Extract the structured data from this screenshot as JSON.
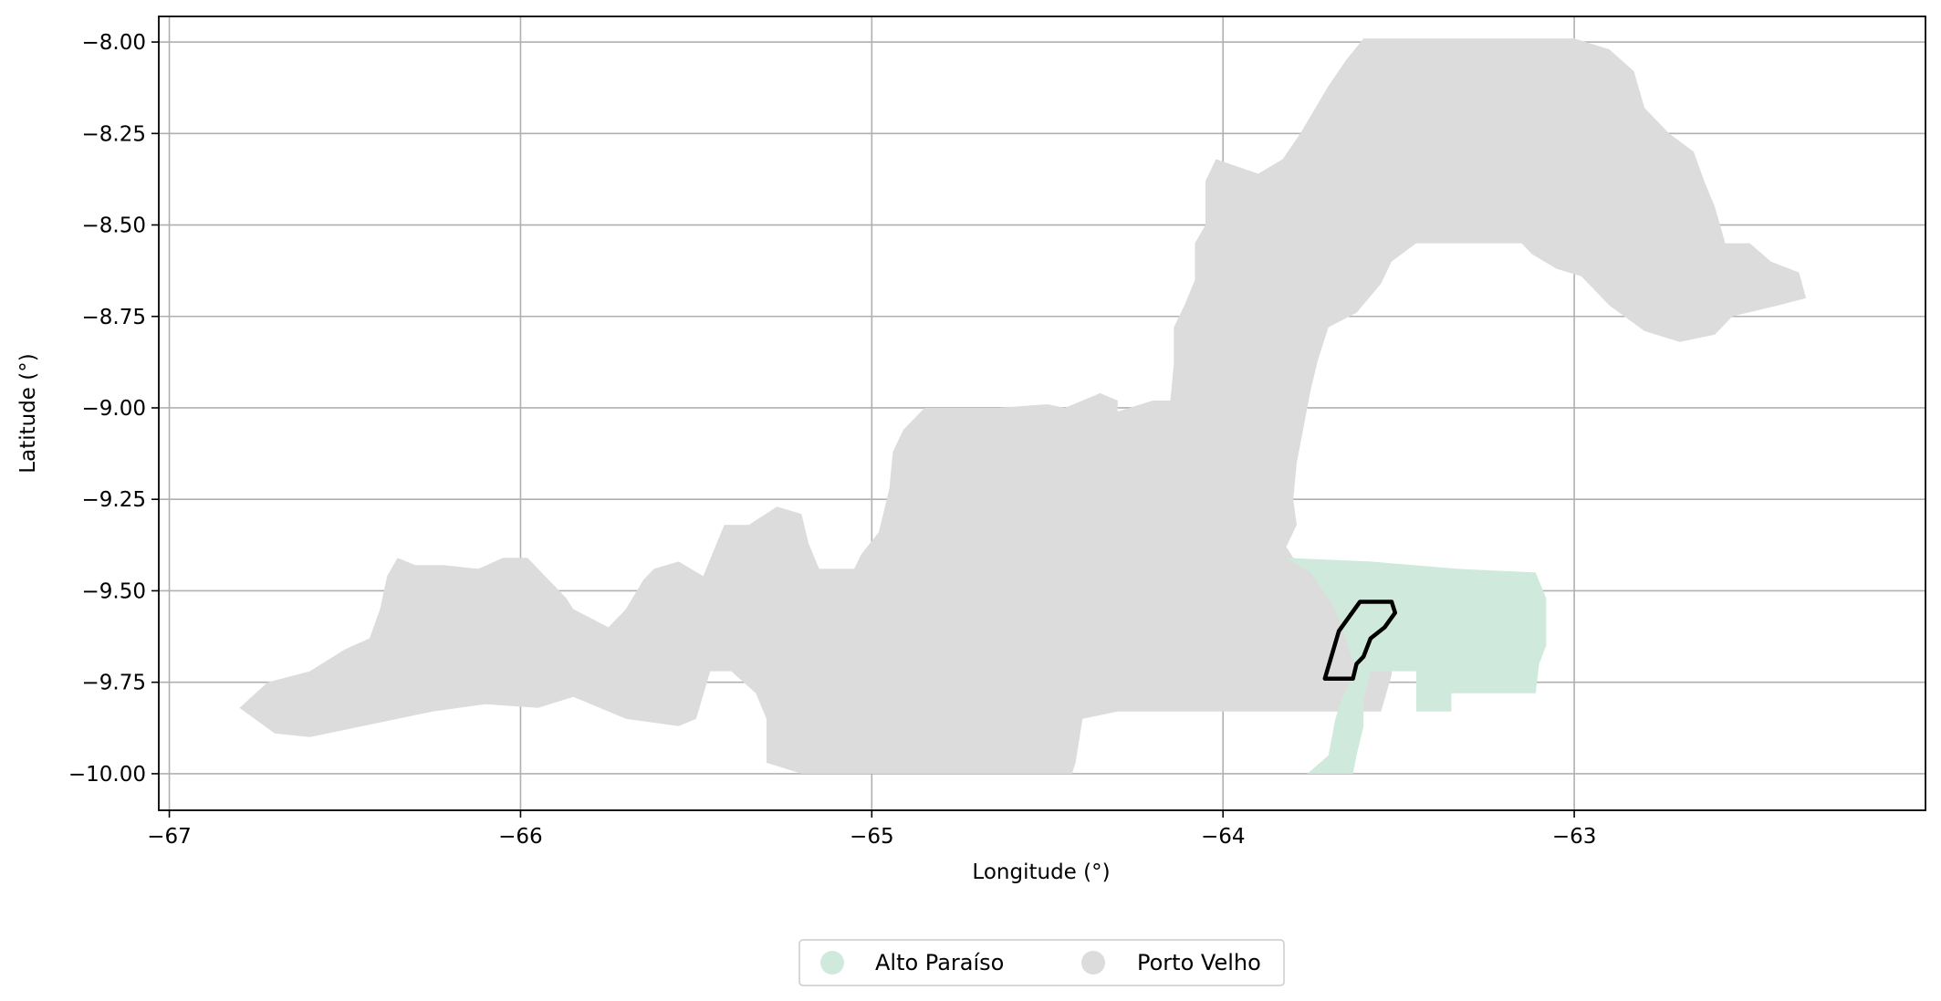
{
  "chart_data": {
    "type": "map",
    "xlabel": "Longitude (°)",
    "ylabel": "Latitude (°)",
    "xlim": [
      -67.03,
      -62.0
    ],
    "ylim": [
      -10.1,
      -7.93
    ],
    "xticks": [
      -67,
      -66,
      -65,
      -64,
      -63
    ],
    "xtick_labels": [
      "−67",
      "−66",
      "−65",
      "−64",
      "−63"
    ],
    "yticks": [
      -8.0,
      -8.25,
      -8.5,
      -8.75,
      -9.0,
      -9.25,
      -9.5,
      -9.75,
      -10.0
    ],
    "ytick_labels": [
      "−8.00",
      "−8.25",
      "−8.50",
      "−8.75",
      "−9.00",
      "−9.25",
      "−9.50",
      "−9.75",
      "−10.00"
    ],
    "grid": true,
    "legend_position": "bottom-center",
    "regions": [
      {
        "name": "Porto Velho",
        "color": "#dcdcdc",
        "polygon": [
          [
            -66.8,
            -9.82
          ],
          [
            -66.72,
            -9.75
          ],
          [
            -66.6,
            -9.72
          ],
          [
            -66.5,
            -9.66
          ],
          [
            -66.43,
            -9.63
          ],
          [
            -66.4,
            -9.55
          ],
          [
            -66.38,
            -9.46
          ],
          [
            -66.35,
            -9.41
          ],
          [
            -66.3,
            -9.43
          ],
          [
            -66.22,
            -9.43
          ],
          [
            -66.12,
            -9.44
          ],
          [
            -66.05,
            -9.41
          ],
          [
            -65.98,
            -9.41
          ],
          [
            -65.92,
            -9.47
          ],
          [
            -65.87,
            -9.52
          ],
          [
            -65.85,
            -9.55
          ],
          [
            -65.75,
            -9.6
          ],
          [
            -65.7,
            -9.55
          ],
          [
            -65.65,
            -9.47
          ],
          [
            -65.62,
            -9.44
          ],
          [
            -65.55,
            -9.42
          ],
          [
            -65.48,
            -9.46
          ],
          [
            -65.45,
            -9.39
          ],
          [
            -65.42,
            -9.32
          ],
          [
            -65.35,
            -9.32
          ],
          [
            -65.27,
            -9.27
          ],
          [
            -65.2,
            -9.29
          ],
          [
            -65.18,
            -9.37
          ],
          [
            -65.15,
            -9.44
          ],
          [
            -65.05,
            -9.44
          ],
          [
            -65.03,
            -9.4
          ],
          [
            -64.98,
            -9.34
          ],
          [
            -64.95,
            -9.22
          ],
          [
            -64.94,
            -9.12
          ],
          [
            -64.91,
            -9.06
          ],
          [
            -64.85,
            -9.0
          ],
          [
            -64.72,
            -9.0
          ],
          [
            -64.64,
            -9.0
          ],
          [
            -64.5,
            -8.99
          ],
          [
            -64.45,
            -9.0
          ],
          [
            -64.35,
            -8.96
          ],
          [
            -64.3,
            -8.98
          ],
          [
            -64.3,
            -9.01
          ],
          [
            -64.2,
            -8.98
          ],
          [
            -64.15,
            -8.98
          ],
          [
            -64.14,
            -8.88
          ],
          [
            -64.14,
            -8.78
          ],
          [
            -64.11,
            -8.72
          ],
          [
            -64.08,
            -8.65
          ],
          [
            -64.08,
            -8.55
          ],
          [
            -64.05,
            -8.5
          ],
          [
            -64.05,
            -8.38
          ],
          [
            -64.02,
            -8.32
          ],
          [
            -63.96,
            -8.34
          ],
          [
            -63.9,
            -8.36
          ],
          [
            -63.83,
            -8.32
          ],
          [
            -63.78,
            -8.25
          ],
          [
            -63.7,
            -8.12
          ],
          [
            -63.65,
            -8.05
          ],
          [
            -63.6,
            -7.99
          ],
          [
            -63.2,
            -7.99
          ],
          [
            -63.0,
            -7.99
          ],
          [
            -62.9,
            -8.02
          ],
          [
            -62.83,
            -8.08
          ],
          [
            -62.8,
            -8.18
          ],
          [
            -62.73,
            -8.25
          ],
          [
            -62.66,
            -8.3
          ],
          [
            -62.63,
            -8.38
          ],
          [
            -62.6,
            -8.45
          ],
          [
            -62.57,
            -8.55
          ],
          [
            -62.5,
            -8.55
          ],
          [
            -62.44,
            -8.6
          ],
          [
            -62.36,
            -8.63
          ],
          [
            -62.34,
            -8.7
          ],
          [
            -62.42,
            -8.72
          ],
          [
            -62.55,
            -8.75
          ],
          [
            -62.6,
            -8.8
          ],
          [
            -62.7,
            -8.82
          ],
          [
            -62.8,
            -8.79
          ],
          [
            -62.9,
            -8.72
          ],
          [
            -62.98,
            -8.64
          ],
          [
            -63.05,
            -8.62
          ],
          [
            -63.12,
            -8.58
          ],
          [
            -63.15,
            -8.55
          ],
          [
            -63.3,
            -8.55
          ],
          [
            -63.45,
            -8.55
          ],
          [
            -63.52,
            -8.6
          ],
          [
            -63.55,
            -8.66
          ],
          [
            -63.62,
            -8.74
          ],
          [
            -63.7,
            -8.78
          ],
          [
            -63.73,
            -8.87
          ],
          [
            -63.75,
            -8.95
          ],
          [
            -63.77,
            -9.05
          ],
          [
            -63.79,
            -9.15
          ],
          [
            -63.8,
            -9.25
          ],
          [
            -63.79,
            -9.32
          ],
          [
            -63.82,
            -9.38
          ],
          [
            -63.8,
            -9.41
          ],
          [
            -63.66,
            -9.44
          ],
          [
            -63.58,
            -9.52
          ],
          [
            -63.56,
            -9.58
          ],
          [
            -63.52,
            -9.65
          ],
          [
            -63.52,
            -9.73
          ],
          [
            -63.55,
            -9.83
          ],
          [
            -63.8,
            -9.83
          ],
          [
            -64.3,
            -9.83
          ],
          [
            -64.4,
            -9.85
          ],
          [
            -64.42,
            -9.97
          ],
          [
            -64.43,
            -10.0
          ],
          [
            -64.9,
            -10.0
          ],
          [
            -65.2,
            -10.0
          ],
          [
            -65.3,
            -9.97
          ],
          [
            -65.3,
            -9.85
          ],
          [
            -65.33,
            -9.78
          ],
          [
            -65.4,
            -9.72
          ],
          [
            -65.46,
            -9.72
          ],
          [
            -65.5,
            -9.85
          ],
          [
            -65.55,
            -9.87
          ],
          [
            -65.7,
            -9.85
          ],
          [
            -65.85,
            -9.79
          ],
          [
            -65.95,
            -9.82
          ],
          [
            -66.1,
            -9.81
          ],
          [
            -66.25,
            -9.83
          ],
          [
            -66.35,
            -9.85
          ],
          [
            -66.45,
            -9.87
          ],
          [
            -66.6,
            -9.9
          ],
          [
            -66.7,
            -9.89
          ]
        ]
      },
      {
        "name": "Alto Paraíso",
        "color": "#cfeadc",
        "polygon": [
          [
            -63.82,
            -9.41
          ],
          [
            -63.58,
            -9.42
          ],
          [
            -63.33,
            -9.44
          ],
          [
            -63.11,
            -9.45
          ],
          [
            -63.08,
            -9.52
          ],
          [
            -63.08,
            -9.65
          ],
          [
            -63.1,
            -9.7
          ],
          [
            -63.11,
            -9.78
          ],
          [
            -63.35,
            -9.78
          ],
          [
            -63.35,
            -9.83
          ],
          [
            -63.45,
            -9.83
          ],
          [
            -63.45,
            -9.72
          ],
          [
            -63.58,
            -9.72
          ],
          [
            -63.6,
            -9.8
          ],
          [
            -63.6,
            -9.87
          ],
          [
            -63.62,
            -9.95
          ],
          [
            -63.63,
            -10.0
          ],
          [
            -63.76,
            -10.0
          ],
          [
            -63.7,
            -9.95
          ],
          [
            -63.68,
            -9.85
          ],
          [
            -63.66,
            -9.79
          ],
          [
            -63.62,
            -9.72
          ],
          [
            -63.68,
            -9.55
          ],
          [
            -63.75,
            -9.45
          ]
        ]
      }
    ],
    "highlight_outline": {
      "color": "#000000",
      "polygon": [
        [
          -63.71,
          -9.74
        ],
        [
          -63.67,
          -9.61
        ],
        [
          -63.61,
          -9.53
        ],
        [
          -63.52,
          -9.53
        ],
        [
          -63.51,
          -9.56
        ],
        [
          -63.54,
          -9.6
        ],
        [
          -63.58,
          -9.63
        ],
        [
          -63.6,
          -9.68
        ],
        [
          -63.62,
          -9.7
        ],
        [
          -63.63,
          -9.74
        ]
      ]
    },
    "legend": [
      {
        "label": "Alto Paraíso",
        "color": "#cfeadc"
      },
      {
        "label": "Porto Velho",
        "color": "#dcdcdc"
      }
    ]
  }
}
